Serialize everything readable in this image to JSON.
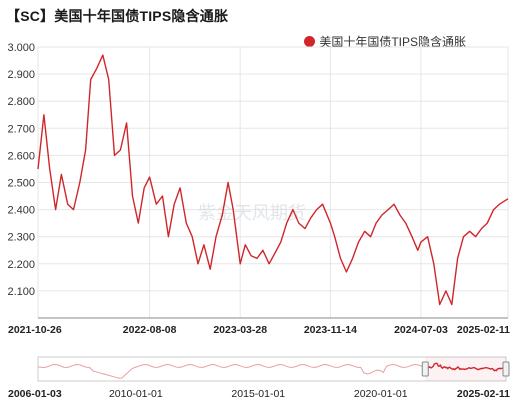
{
  "title": "【SC】美国十年国债TIPS隐含通胀",
  "legend_label": "美国十年国债TIPS隐含通胀",
  "watermark": "紫金天风期货",
  "colors": {
    "series": "#d0262b",
    "navigator": "#e8a0a3",
    "grid": "#e6e6e6"
  },
  "chart_data": {
    "type": "line",
    "title": "【SC】美国十年国债TIPS隐含通胀",
    "ylim": [
      2.0,
      3.0
    ],
    "yticks": [
      "2.100",
      "2.200",
      "2.300",
      "2.400",
      "2.500",
      "2.600",
      "2.700",
      "2.800",
      "2.900",
      "3.000"
    ],
    "xticks": [
      "2021-10-26",
      "2022-08-08",
      "2023-03-28",
      "2023-11-14",
      "2024-07-03",
      "2025-02-11"
    ],
    "grid": true,
    "legend": "top-right",
    "series": [
      {
        "name": "美国十年国债TIPS隐含通胀",
        "points": [
          [
            "2021-10-26",
            2.55
          ],
          [
            "2021-11-10",
            2.75
          ],
          [
            "2021-11-25",
            2.55
          ],
          [
            "2021-12-10",
            2.4
          ],
          [
            "2021-12-25",
            2.53
          ],
          [
            "2022-01-10",
            2.42
          ],
          [
            "2022-01-25",
            2.4
          ],
          [
            "2022-02-10",
            2.5
          ],
          [
            "2022-02-25",
            2.62
          ],
          [
            "2022-03-10",
            2.88
          ],
          [
            "2022-03-25",
            2.92
          ],
          [
            "2022-04-10",
            2.97
          ],
          [
            "2022-04-25",
            2.88
          ],
          [
            "2022-05-10",
            2.6
          ],
          [
            "2022-05-25",
            2.62
          ],
          [
            "2022-06-10",
            2.72
          ],
          [
            "2022-06-25",
            2.45
          ],
          [
            "2022-07-10",
            2.35
          ],
          [
            "2022-07-25",
            2.48
          ],
          [
            "2022-08-08",
            2.52
          ],
          [
            "2022-08-25",
            2.42
          ],
          [
            "2022-09-10",
            2.45
          ],
          [
            "2022-09-25",
            2.3
          ],
          [
            "2022-10-10",
            2.42
          ],
          [
            "2022-10-25",
            2.48
          ],
          [
            "2022-11-10",
            2.35
          ],
          [
            "2022-11-25",
            2.3
          ],
          [
            "2022-12-10",
            2.2
          ],
          [
            "2022-12-25",
            2.27
          ],
          [
            "2023-01-10",
            2.18
          ],
          [
            "2023-01-25",
            2.3
          ],
          [
            "2023-02-10",
            2.38
          ],
          [
            "2023-02-25",
            2.5
          ],
          [
            "2023-03-10",
            2.4
          ],
          [
            "2023-03-28",
            2.2
          ],
          [
            "2023-04-10",
            2.27
          ],
          [
            "2023-04-25",
            2.23
          ],
          [
            "2023-05-10",
            2.22
          ],
          [
            "2023-05-25",
            2.25
          ],
          [
            "2023-06-10",
            2.2
          ],
          [
            "2023-06-25",
            2.24
          ],
          [
            "2023-07-10",
            2.28
          ],
          [
            "2023-07-25",
            2.35
          ],
          [
            "2023-08-10",
            2.4
          ],
          [
            "2023-08-25",
            2.35
          ],
          [
            "2023-09-10",
            2.33
          ],
          [
            "2023-09-25",
            2.37
          ],
          [
            "2023-10-10",
            2.4
          ],
          [
            "2023-10-25",
            2.42
          ],
          [
            "2023-11-14",
            2.35
          ],
          [
            "2023-11-25",
            2.3
          ],
          [
            "2023-12-10",
            2.22
          ],
          [
            "2023-12-25",
            2.17
          ],
          [
            "2024-01-10",
            2.22
          ],
          [
            "2024-01-25",
            2.28
          ],
          [
            "2024-02-10",
            2.32
          ],
          [
            "2024-02-25",
            2.3
          ],
          [
            "2024-03-10",
            2.35
          ],
          [
            "2024-03-25",
            2.38
          ],
          [
            "2024-04-10",
            2.4
          ],
          [
            "2024-04-25",
            2.42
          ],
          [
            "2024-05-10",
            2.38
          ],
          [
            "2024-05-25",
            2.35
          ],
          [
            "2024-06-10",
            2.3
          ],
          [
            "2024-06-25",
            2.25
          ],
          [
            "2024-07-03",
            2.28
          ],
          [
            "2024-07-20",
            2.3
          ],
          [
            "2024-08-05",
            2.2
          ],
          [
            "2024-08-20",
            2.05
          ],
          [
            "2024-09-05",
            2.1
          ],
          [
            "2024-09-20",
            2.05
          ],
          [
            "2024-10-05",
            2.22
          ],
          [
            "2024-10-20",
            2.3
          ],
          [
            "2024-11-05",
            2.32
          ],
          [
            "2024-11-20",
            2.3
          ],
          [
            "2024-12-05",
            2.33
          ],
          [
            "2024-12-20",
            2.35
          ],
          [
            "2025-01-05",
            2.4
          ],
          [
            "2025-01-20",
            2.42
          ],
          [
            "2025-02-11",
            2.44
          ]
        ]
      }
    ]
  },
  "navigator": {
    "xticks": [
      "2006-01-03",
      "2010-01-01",
      "2015-01-01",
      "2020-01-01",
      "2025-02-11"
    ]
  }
}
